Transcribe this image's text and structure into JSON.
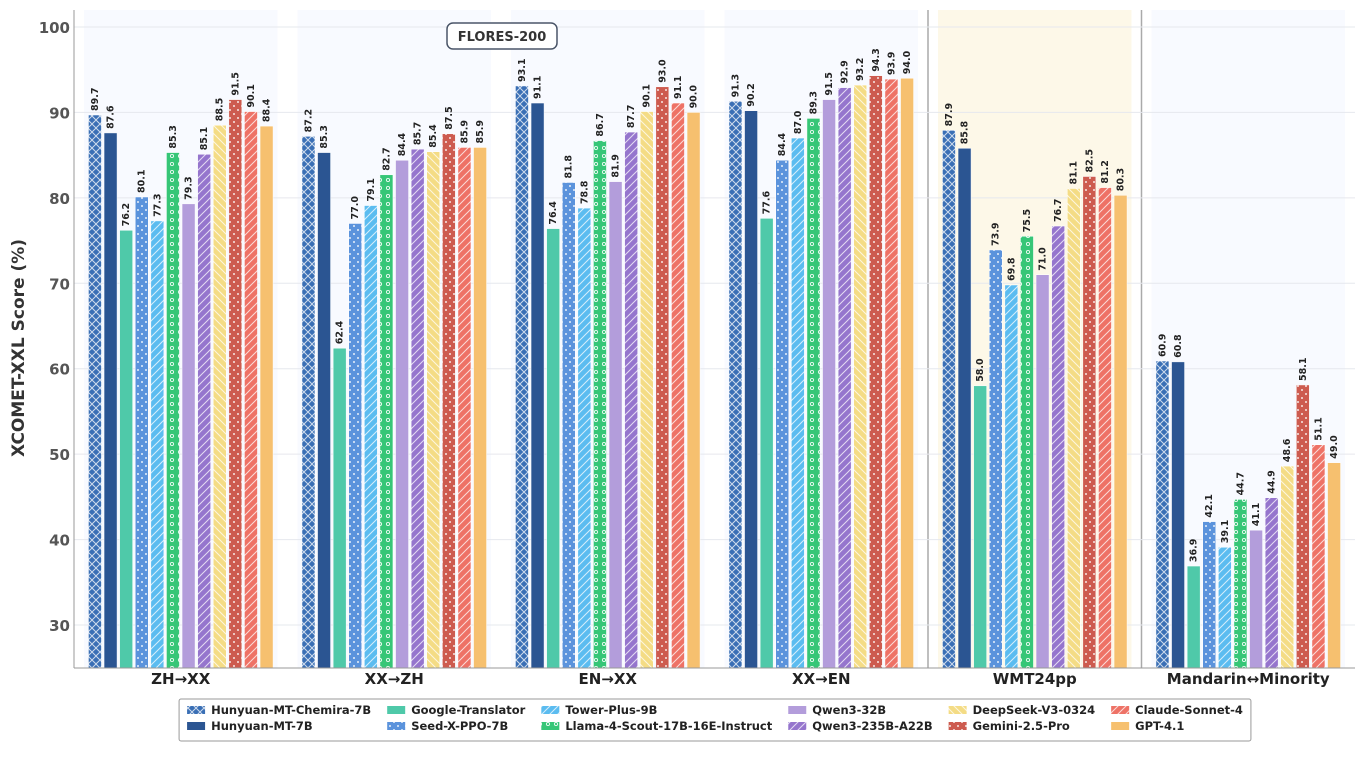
{
  "chart_data": {
    "type": "bar",
    "title": "",
    "annotation": "FLORES-200",
    "ylabel": "XCOMET-XXL Score (%)",
    "xlabel": "",
    "ylim": [
      25,
      102
    ],
    "yticks": [
      30,
      40,
      50,
      60,
      70,
      80,
      90,
      100
    ],
    "grid": true,
    "legend_placement": "bottom",
    "categories": [
      "ZH→XX",
      "XX→ZH",
      "EN→XX",
      "XX→EN",
      "WMT24pp",
      "Mandarin↔Minority"
    ],
    "series": [
      {
        "name": "Hunyuan-MT-Chemira-7B",
        "color": "#3a6fb5",
        "pattern": "crosshatch",
        "values": [
          89.7,
          87.2,
          93.1,
          91.3,
          87.9,
          60.9
        ]
      },
      {
        "name": "Hunyuan-MT-7B",
        "color": "#2b5592",
        "pattern": "none",
        "values": [
          87.6,
          85.3,
          91.1,
          90.2,
          85.8,
          60.8
        ]
      },
      {
        "name": "Google-Translator",
        "color": "#4fc9a9",
        "pattern": "none",
        "values": [
          76.2,
          62.4,
          76.4,
          77.6,
          58.0,
          36.9
        ]
      },
      {
        "name": "Seed-X-PPO-7B",
        "color": "#5b93dc",
        "pattern": "dots",
        "values": [
          80.1,
          77.0,
          81.8,
          84.4,
          73.9,
          42.1
        ]
      },
      {
        "name": "Tower-Plus-9B",
        "color": "#5bbcf0",
        "pattern": "diagonal",
        "values": [
          77.3,
          79.1,
          78.8,
          87.0,
          69.8,
          39.1
        ]
      },
      {
        "name": "Llama-4-Scout-17B-16E-Instruct",
        "color": "#36c677",
        "pattern": "circles",
        "values": [
          85.3,
          82.7,
          86.7,
          89.3,
          75.5,
          44.7
        ]
      },
      {
        "name": "Qwen3-32B",
        "color": "#b39ddb",
        "pattern": "none",
        "values": [
          79.3,
          84.4,
          81.9,
          91.5,
          71.0,
          41.1
        ]
      },
      {
        "name": "Qwen3-235B-A22B",
        "color": "#9575cd",
        "pattern": "diagonal",
        "values": [
          85.1,
          85.7,
          87.7,
          92.9,
          76.7,
          44.9
        ]
      },
      {
        "name": "DeepSeek-V3-0324",
        "color": "#f4dc85",
        "pattern": "backdiagonal",
        "values": [
          88.5,
          85.4,
          90.1,
          93.2,
          81.1,
          48.6
        ]
      },
      {
        "name": "Gemini-2.5-Pro",
        "color": "#cd5b4f",
        "pattern": "dots",
        "values": [
          91.5,
          87.5,
          93.0,
          94.3,
          82.5,
          58.1
        ]
      },
      {
        "name": "Claude-Sonnet-4",
        "color": "#ee7266",
        "pattern": "diagonal",
        "values": [
          90.1,
          85.9,
          91.1,
          93.9,
          81.2,
          51.1
        ]
      },
      {
        "name": "GPT-4.1",
        "color": "#f6c06f",
        "pattern": "none",
        "values": [
          88.4,
          85.9,
          90.0,
          94.0,
          80.3,
          49.0
        ]
      }
    ]
  }
}
